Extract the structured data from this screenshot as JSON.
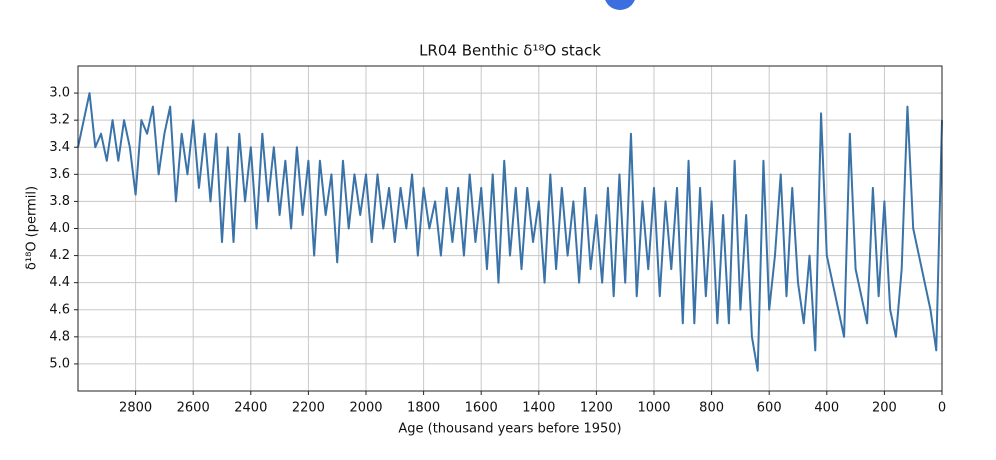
{
  "chart_data": {
    "type": "line",
    "title": "LR04 Benthic δ¹⁸O stack",
    "xlabel": "Age (thousand years before 1950)",
    "ylabel": "δ¹⁸O (permil)",
    "xlim": [
      3000,
      0
    ],
    "ylim": [
      5.2,
      2.8
    ],
    "xticks": [
      2800,
      2600,
      2400,
      2200,
      2000,
      1800,
      1600,
      1400,
      1200,
      1000,
      800,
      600,
      400,
      200,
      0
    ],
    "yticks": [
      {
        "value": 3.0,
        "label": "3.0"
      },
      {
        "value": 3.2,
        "label": "3.2"
      },
      {
        "value": 3.4,
        "label": "3.4"
      },
      {
        "value": 3.6,
        "label": "3.6"
      },
      {
        "value": 3.8,
        "label": "3.8"
      },
      {
        "value": 4.0,
        "label": "4.0"
      },
      {
        "value": 4.2,
        "label": "4.2"
      },
      {
        "value": 4.4,
        "label": "4.4"
      },
      {
        "value": 4.6,
        "label": "4.6"
      },
      {
        "value": 4.8,
        "label": "4.8"
      },
      {
        "value": 5.0,
        "label": "5.0"
      }
    ],
    "grid": true,
    "color": "#3a73a8",
    "x": [
      3000,
      2980,
      2960,
      2940,
      2920,
      2900,
      2880,
      2860,
      2840,
      2820,
      2800,
      2780,
      2760,
      2740,
      2720,
      2700,
      2680,
      2660,
      2640,
      2620,
      2600,
      2580,
      2560,
      2540,
      2520,
      2500,
      2480,
      2460,
      2440,
      2420,
      2400,
      2380,
      2360,
      2340,
      2320,
      2300,
      2280,
      2260,
      2240,
      2220,
      2200,
      2180,
      2160,
      2140,
      2120,
      2100,
      2080,
      2060,
      2040,
      2020,
      2000,
      1980,
      1960,
      1940,
      1920,
      1900,
      1880,
      1860,
      1840,
      1820,
      1800,
      1780,
      1760,
      1740,
      1720,
      1700,
      1680,
      1660,
      1640,
      1620,
      1600,
      1580,
      1560,
      1540,
      1520,
      1500,
      1480,
      1460,
      1440,
      1420,
      1400,
      1380,
      1360,
      1340,
      1320,
      1300,
      1280,
      1260,
      1240,
      1220,
      1200,
      1180,
      1160,
      1140,
      1120,
      1100,
      1080,
      1060,
      1040,
      1020,
      1000,
      980,
      960,
      940,
      920,
      900,
      880,
      860,
      840,
      820,
      800,
      780,
      760,
      740,
      720,
      700,
      680,
      660,
      640,
      620,
      600,
      580,
      560,
      540,
      520,
      500,
      480,
      460,
      440,
      420,
      400,
      380,
      360,
      340,
      320,
      300,
      280,
      260,
      240,
      220,
      200,
      180,
      160,
      140,
      120,
      100,
      80,
      60,
      40,
      20,
      0
    ],
    "values": [
      3.4,
      3.2,
      3.0,
      3.4,
      3.3,
      3.5,
      3.2,
      3.5,
      3.2,
      3.4,
      3.75,
      3.2,
      3.3,
      3.1,
      3.6,
      3.3,
      3.1,
      3.8,
      3.3,
      3.6,
      3.2,
      3.7,
      3.3,
      3.8,
      3.3,
      4.1,
      3.4,
      4.1,
      3.3,
      3.8,
      3.4,
      4.0,
      3.3,
      3.8,
      3.4,
      3.9,
      3.5,
      4.0,
      3.4,
      3.9,
      3.5,
      4.2,
      3.5,
      3.9,
      3.6,
      4.25,
      3.5,
      4.0,
      3.6,
      3.9,
      3.6,
      4.1,
      3.6,
      4.0,
      3.7,
      4.1,
      3.7,
      4.0,
      3.6,
      4.2,
      3.7,
      4.0,
      3.8,
      4.2,
      3.7,
      4.1,
      3.7,
      4.2,
      3.6,
      4.1,
      3.7,
      4.3,
      3.6,
      4.4,
      3.5,
      4.2,
      3.7,
      4.3,
      3.7,
      4.1,
      3.8,
      4.4,
      3.6,
      4.3,
      3.7,
      4.2,
      3.8,
      4.4,
      3.7,
      4.3,
      3.9,
      4.4,
      3.7,
      4.5,
      3.6,
      4.4,
      3.3,
      4.5,
      3.8,
      4.3,
      3.7,
      4.5,
      3.8,
      4.3,
      3.7,
      4.7,
      3.5,
      4.7,
      3.7,
      4.5,
      3.8,
      4.7,
      3.9,
      4.7,
      3.5,
      4.6,
      3.9,
      4.8,
      5.05,
      3.5,
      4.6,
      4.2,
      3.6,
      4.5,
      3.7,
      4.4,
      4.7,
      4.2,
      4.9,
      3.15,
      4.2,
      4.4,
      4.6,
      4.8,
      3.3,
      4.3,
      4.5,
      4.7,
      3.7,
      4.5,
      3.8,
      4.6,
      4.8,
      4.3,
      3.1,
      4.0,
      4.2,
      4.4,
      4.6,
      4.9,
      3.2
    ]
  }
}
